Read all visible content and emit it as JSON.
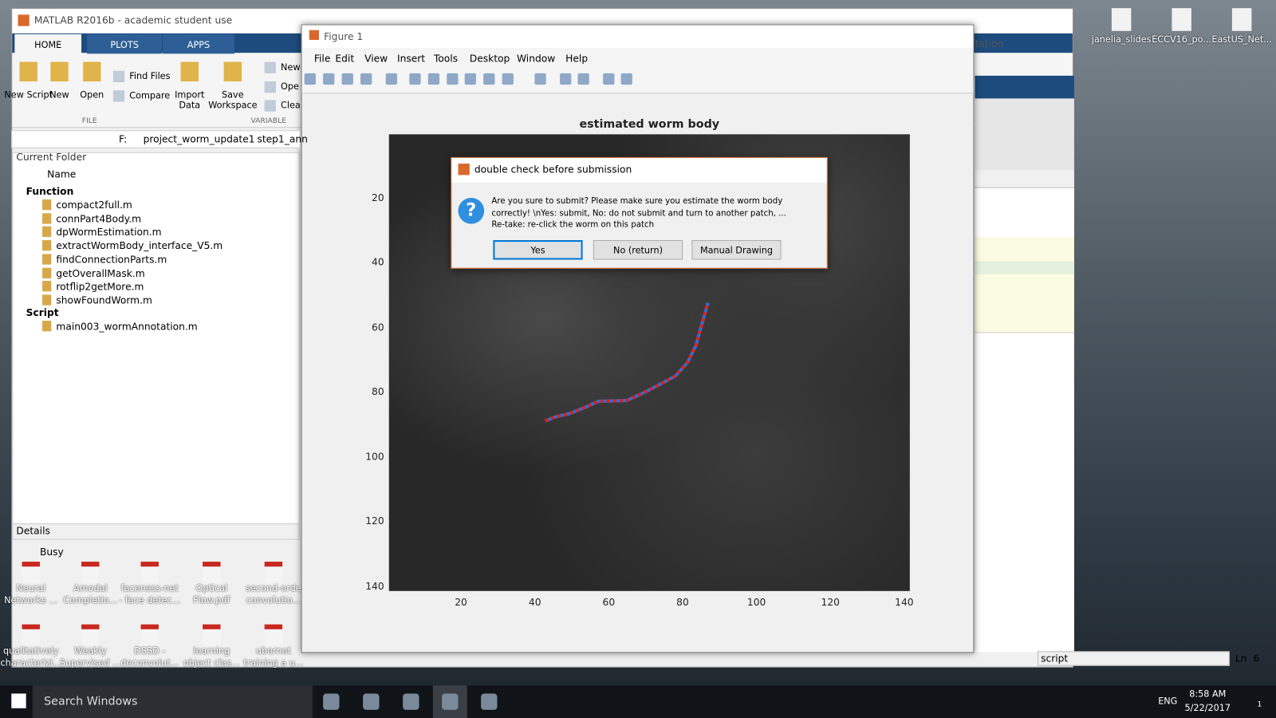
{
  "matlab": {
    "title": "MATLAB R2016b - academic student use",
    "tabs": [
      "HOME",
      "PLOTS",
      "APPS"
    ],
    "buttons": [
      "New Script",
      "New",
      "Open",
      "Find Files",
      "Compare",
      "Import Data",
      "Save Workspace",
      "New",
      "Ope",
      "Clea"
    ],
    "sections": [
      "FILE",
      "VARIABLE"
    ],
    "path": [
      "F:",
      "project_worm_update1",
      "step1_ann"
    ],
    "current_folder": "Current Folder",
    "column": "Name",
    "groups": [
      {
        "name": "Function",
        "files": [
          "compact2full.m",
          "connPart4Body.m",
          "dpWormEstimation.m",
          "extractWormBody_interface_V5.m",
          "findConnectionParts.m",
          "getOverallMask.m",
          "rotflip2getMore.m",
          "showFoundWorm.m"
        ]
      },
      {
        "name": "Script",
        "files": [
          "main003_wormAnnotation.m"
        ]
      }
    ],
    "details": "Details",
    "status": "Busy",
    "search": "tation",
    "editor_status": "script",
    "ln_label": "Ln",
    "ln": 6
  },
  "figure": {
    "title": "Figure 1",
    "menu": [
      "File",
      "Edit",
      "View",
      "Insert",
      "Tools",
      "Desktop",
      "Window",
      "Help"
    ],
    "axes_title": "estimated worm body",
    "xlim": [
      0.5,
      141.5
    ],
    "ylim": [
      0.5,
      141.5
    ],
    "xticks": [
      20,
      40,
      60,
      80,
      100,
      120,
      140
    ],
    "yticks": [
      20,
      40,
      60,
      80,
      100,
      120,
      140
    ]
  },
  "dialog": {
    "title": "double check before submission",
    "message": [
      "Are you sure to submit? Please make sure you estimate the worm body",
      "correctly! \\nYes: submit, No: do not submit and turn to another patch, ...",
      "Re-take: re-click the worm on this patch"
    ],
    "buttons": [
      "Yes",
      "No (return)",
      "Manual Drawing"
    ]
  },
  "desktop_icons": {
    "top": [
      "janelia_slides",
      "ECCV16_po...",
      "EastUS_Net..."
    ],
    "bottom": [
      [
        "Neural",
        "Networks ..."
      ],
      [
        "Amodal",
        "Completio..."
      ],
      [
        "faceness-net",
        "- face detec..."
      ],
      [
        "Optical",
        "Flow.pdf"
      ],
      [
        "second-orde",
        "convolutio..."
      ],
      [
        "qualitatively",
        "characterizi..."
      ],
      [
        "Weakly",
        "Supervised ..."
      ],
      [
        "DSSD -",
        "deconvolut..."
      ],
      [
        "learning",
        "object clas..."
      ],
      [
        "ubernet",
        "training a u..."
      ]
    ]
  },
  "taskbar": {
    "search": "Search Windows",
    "lang": "ENG",
    "time": "8:58 AM",
    "date": "5/22/2017",
    "notifications": 1
  }
}
